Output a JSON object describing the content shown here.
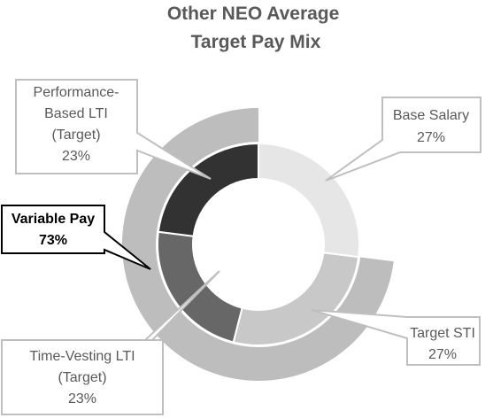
{
  "chart_data": {
    "type": "pie",
    "title": [
      "Other NEO Average",
      "Target Pay Mix"
    ],
    "inner_ring": {
      "slices": [
        {
          "label": [
            "Base Salary"
          ],
          "percent_label": "27%",
          "value": 27,
          "color": "#e6e6e6"
        },
        {
          "label": [
            "Target STI"
          ],
          "percent_label": "27%",
          "value": 27,
          "color": "#c8c8c8"
        },
        {
          "label": [
            "Time-Vesting LTI",
            "(Target)"
          ],
          "percent_label": "23%",
          "value": 23,
          "color": "#676767"
        },
        {
          "label": [
            "Performance-",
            "Based LTI",
            "(Target)"
          ],
          "percent_label": "23%",
          "value": 23,
          "color": "#323232"
        }
      ]
    },
    "outer_ring": {
      "segment": {
        "label": [
          "Variable Pay"
        ],
        "percent_label": "73%",
        "value": 73,
        "color": "#bdbdbd"
      }
    }
  }
}
